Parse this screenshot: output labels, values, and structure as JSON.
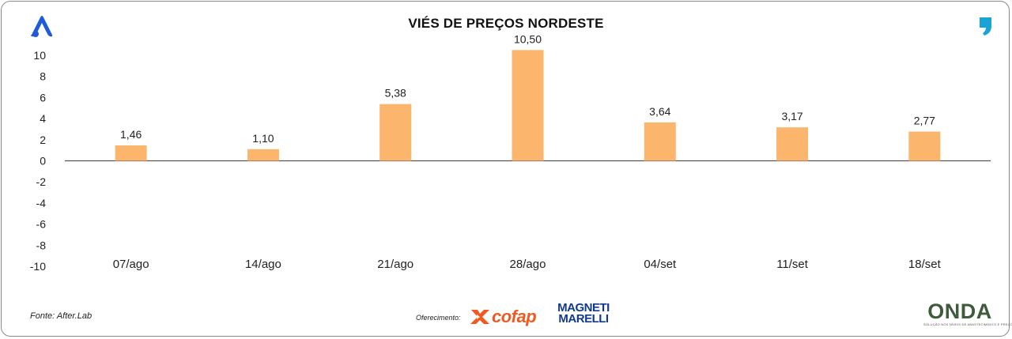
{
  "header": {
    "title": "VIÉS DE PREÇOS NORDESTE"
  },
  "chart_data": {
    "type": "bar",
    "title": "VIÉS DE PREÇOS NORDESTE",
    "xlabel": "",
    "ylabel": "",
    "categories": [
      "07/ago",
      "14/ago",
      "21/ago",
      "28/ago",
      "04/set",
      "11/set",
      "18/set"
    ],
    "values": [
      1.46,
      1.1,
      5.38,
      10.5,
      3.64,
      3.17,
      2.77
    ],
    "value_labels": [
      "1,46",
      "1,10",
      "5,38",
      "10,50",
      "3,64",
      "3,17",
      "2,77"
    ],
    "ylim": [
      -10,
      10
    ],
    "yticks": [
      10,
      8,
      6,
      4,
      2,
      0,
      -2,
      -4,
      -6,
      -8,
      -10
    ],
    "ytick_labels": [
      "10",
      "8",
      "6",
      "4",
      "2",
      "0",
      "-2",
      "-4",
      "-6",
      "-8",
      "-10"
    ],
    "grid": false,
    "legend": "none",
    "bar_color": "#fbb56c"
  },
  "footer": {
    "source": "Fonte: After.Lab",
    "sponsor_label": "Oferecimento:",
    "sponsor_1": "cofap",
    "sponsor_2_line1": "MAGNETI",
    "sponsor_2_line2": "MARELLI",
    "brand": "ONDA",
    "brand_tagline": "SOLUÇÃO NOS NÍVEIS DE ABASTECIMENTO E PREÇO"
  },
  "icons": {
    "left_logo": "stylized-a-logo-icon",
    "right_logo": "comma-logo-icon"
  },
  "colors": {
    "left_logo": "#1f5bd6",
    "right_logo": "#1aa3d6",
    "cofap": "#ef5a23",
    "marelli": "#123a8a",
    "onda": "#3f5b3c"
  }
}
